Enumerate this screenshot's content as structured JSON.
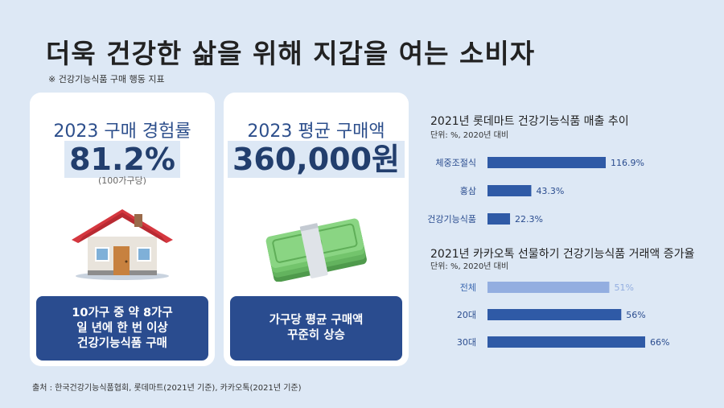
{
  "header": {
    "title": "더욱 건강한 삶을 위해 지갑을 여는 소비자",
    "subtitle": "※ 건강기능식품 구매 행동 지표"
  },
  "card1": {
    "label": "2023 구매 경험률",
    "value": "81.2%",
    "note": "(100가구당)",
    "icon": "house-icon",
    "box_lines": [
      "10가구 중 약 8가구",
      "일 년에 한 번 이상",
      "건강기능식품 구매"
    ]
  },
  "card2": {
    "label": "2023 평균 구매액",
    "value": "360,000원",
    "icon": "money-stack-icon",
    "box_lines": [
      "가구당 평균 구매액",
      "꾸준히 상승"
    ]
  },
  "source": "출처 : 한국건강기능식품협회,  롯데마트(2021년 기준), 카카오톡(2021년 기준)",
  "colors": {
    "background": "#dde8f5",
    "card": "#ffffff",
    "box": "#2a4c8f",
    "bar_dark": "#2f5aa6",
    "bar_light": "#93aee0",
    "label_blue": "#3a67b0"
  },
  "chart_data": [
    {
      "type": "bar",
      "orientation": "horizontal",
      "title": "2021년 롯데마트 건강기능식품 매출 추이",
      "unit": "단위: %, 2020년 대비",
      "categories": [
        "체중조절식",
        "홍삼",
        "건강기능식품"
      ],
      "values": [
        116.9,
        43.3,
        22.3
      ],
      "value_labels": [
        "116.9%",
        "43.3%",
        "22.3%"
      ],
      "xlim": [
        0,
        116.9
      ],
      "grid": false,
      "legend": "none"
    },
    {
      "type": "bar",
      "orientation": "horizontal",
      "title": "2021년 카카오톡 선물하기 건강기능식품 거래액 증가율",
      "unit": "단위: %, 2020년 대비",
      "categories": [
        "전체",
        "20대",
        "30대"
      ],
      "values": [
        51,
        56,
        66
      ],
      "value_labels": [
        "51%",
        "56%",
        "66%"
      ],
      "highlight": [
        false,
        true,
        true
      ],
      "xlim": [
        0,
        66
      ],
      "grid": false,
      "legend": "none"
    }
  ]
}
